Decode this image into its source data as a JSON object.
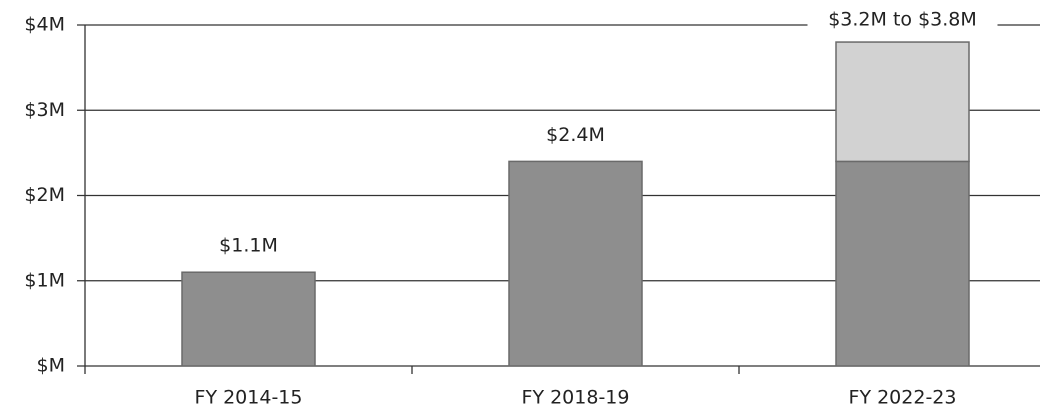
{
  "chart_data": {
    "type": "bar",
    "stacked": true,
    "categories": [
      "FY 2014-15",
      "FY 2018-19",
      "FY 2022-23"
    ],
    "series": [
      {
        "color": "#8e8e8e",
        "values": [
          1100000,
          2400000,
          2400000
        ],
        "value_labels": [
          "$1.1M",
          "$2.4M",
          null
        ]
      },
      {
        "color": "#d2d2d2",
        "values": [
          null,
          null,
          1400000
        ]
      }
    ],
    "annotations": [
      {
        "category": 2,
        "text": "$3.2M to $3.8M"
      }
    ],
    "ylim": [
      0,
      4000000
    ],
    "yticks": [
      {
        "value": 0,
        "label": "$M"
      },
      {
        "value": 1000000,
        "label": "$1M"
      },
      {
        "value": 2000000,
        "label": "$2M"
      },
      {
        "value": 3000000,
        "label": "$3M"
      },
      {
        "value": 4000000,
        "label": "$4M"
      }
    ],
    "grid": true
  }
}
